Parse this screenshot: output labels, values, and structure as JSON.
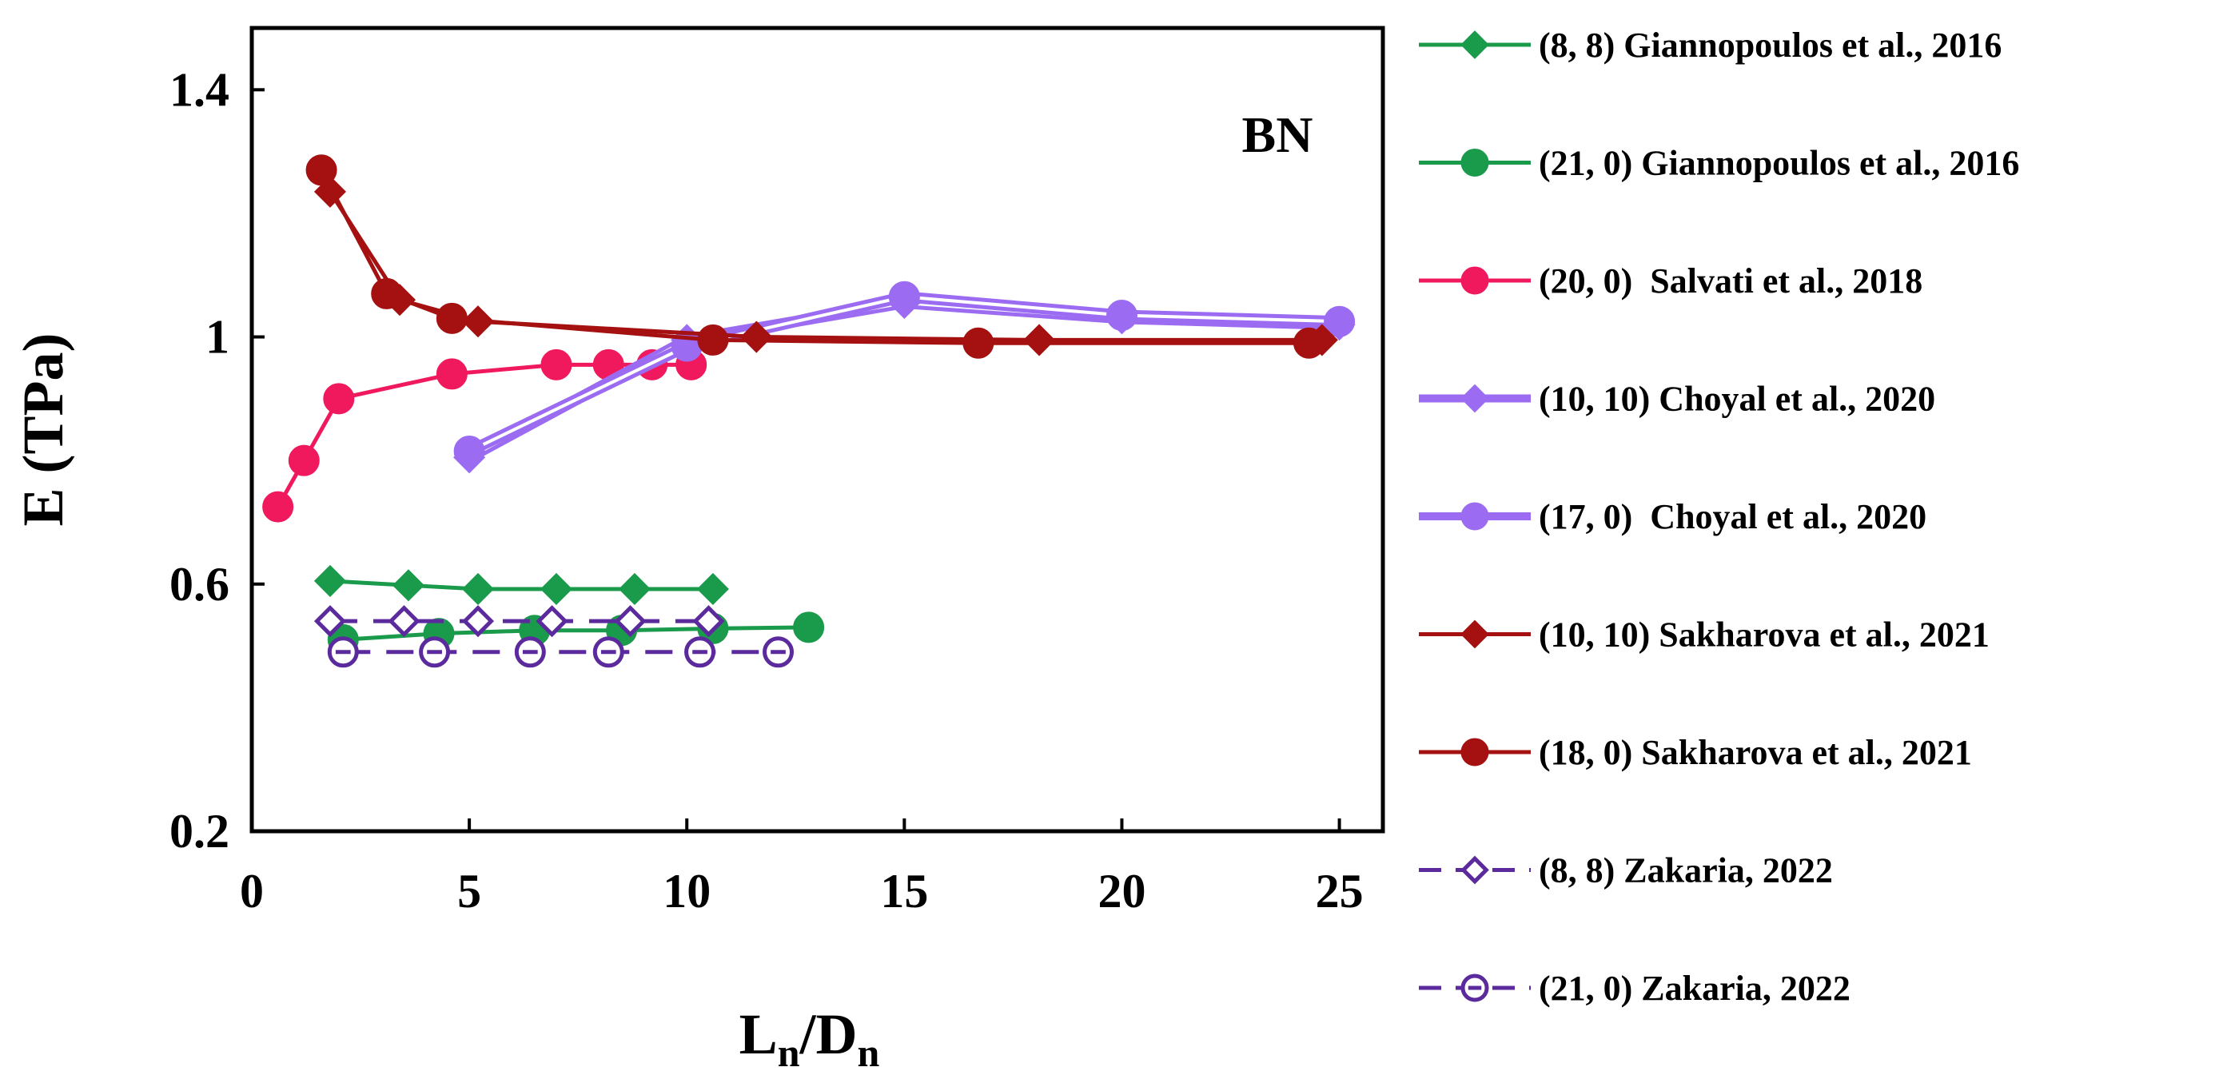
{
  "chart_data": {
    "type": "line",
    "panel_label": "BN",
    "xlabel": {
      "main": "L",
      "sub1": "n",
      "sep": "/D",
      "sub2": "n"
    },
    "ylabel": "E (TPa)",
    "xlim": [
      0,
      26
    ],
    "ylim": [
      0.2,
      1.5
    ],
    "xticks": [
      0,
      5,
      10,
      15,
      20,
      25
    ],
    "yticks": [
      0.2,
      0.6,
      1,
      1.4
    ],
    "xtick_labels": [
      "0",
      "5",
      "10",
      "15",
      "20",
      "25"
    ],
    "ytick_labels": [
      "0.2",
      "0.6",
      "1",
      "1.4"
    ],
    "legend_position": "right, outside plot",
    "series": [
      {
        "name": "(8, 8) Giannopoulos et al., 2016",
        "color": "#1a9a4b",
        "marker": "diamond",
        "filled": true,
        "dash": false,
        "double": false,
        "x": [
          1.8,
          3.6,
          5.2,
          7.0,
          8.8,
          10.6
        ],
        "y": [
          0.605,
          0.598,
          0.592,
          0.592,
          0.592,
          0.592
        ]
      },
      {
        "name": "(21, 0) Giannopoulos et al., 2016",
        "color": "#1a9a4b",
        "marker": "circle",
        "filled": true,
        "dash": false,
        "double": false,
        "x": [
          2.1,
          4.3,
          6.5,
          8.5,
          10.6,
          12.8
        ],
        "y": [
          0.51,
          0.52,
          0.525,
          0.525,
          0.528,
          0.53
        ]
      },
      {
        "name": "(20, 0)  Salvati et al., 2018",
        "color": "#f0195e",
        "marker": "circle",
        "filled": true,
        "dash": false,
        "double": false,
        "x": [
          0.6,
          1.2,
          2.0,
          4.6,
          7.0,
          8.2,
          9.2,
          10.1
        ],
        "y": [
          0.725,
          0.8,
          0.9,
          0.94,
          0.955,
          0.955,
          0.955,
          0.955
        ]
      },
      {
        "name": "(10, 10) Choyal et al., 2020",
        "color": "#9b6cf2",
        "marker": "diamond",
        "filled": true,
        "dash": false,
        "double": true,
        "x": [
          5.0,
          10.0,
          15.0,
          20.0,
          25.0
        ],
        "y": [
          0.805,
          0.995,
          1.055,
          1.03,
          1.02
        ]
      },
      {
        "name": "(17, 0)  Choyal et al., 2020",
        "color": "#9b6cf2",
        "marker": "circle",
        "filled": true,
        "dash": false,
        "double": true,
        "x": [
          5.0,
          10.0,
          15.0,
          20.0,
          25.0
        ],
        "y": [
          0.815,
          0.985,
          1.065,
          1.035,
          1.025
        ]
      },
      {
        "name": "(10, 10) Sakharova et al., 2021",
        "color": "#a51010",
        "marker": "diamond",
        "filled": true,
        "dash": false,
        "double": false,
        "x": [
          1.8,
          3.4,
          5.2,
          11.6,
          18.1,
          24.6
        ],
        "y": [
          1.235,
          1.06,
          1.025,
          1.0,
          0.995,
          0.995
        ]
      },
      {
        "name": "(18, 0) Sakharova et al., 2021",
        "color": "#a51010",
        "marker": "circle",
        "filled": true,
        "dash": false,
        "double": false,
        "x": [
          1.6,
          3.1,
          4.6,
          10.6,
          16.7,
          24.3
        ],
        "y": [
          1.27,
          1.07,
          1.03,
          0.995,
          0.99,
          0.99
        ]
      },
      {
        "name": "(8, 8) Zakaria, 2022",
        "color": "#5b2a9c",
        "marker": "diamond",
        "filled": false,
        "dash": true,
        "double": false,
        "x": [
          1.8,
          3.5,
          5.2,
          6.9,
          8.7,
          10.5
        ],
        "y": [
          0.54,
          0.54,
          0.54,
          0.54,
          0.54,
          0.54
        ]
      },
      {
        "name": "(21, 0) Zakaria, 2022",
        "color": "#5b2a9c",
        "marker": "circle",
        "filled": false,
        "dash": true,
        "double": false,
        "x": [
          2.1,
          4.2,
          6.4,
          8.2,
          10.3,
          12.1
        ],
        "y": [
          0.49,
          0.49,
          0.49,
          0.49,
          0.49,
          0.49
        ]
      }
    ]
  }
}
